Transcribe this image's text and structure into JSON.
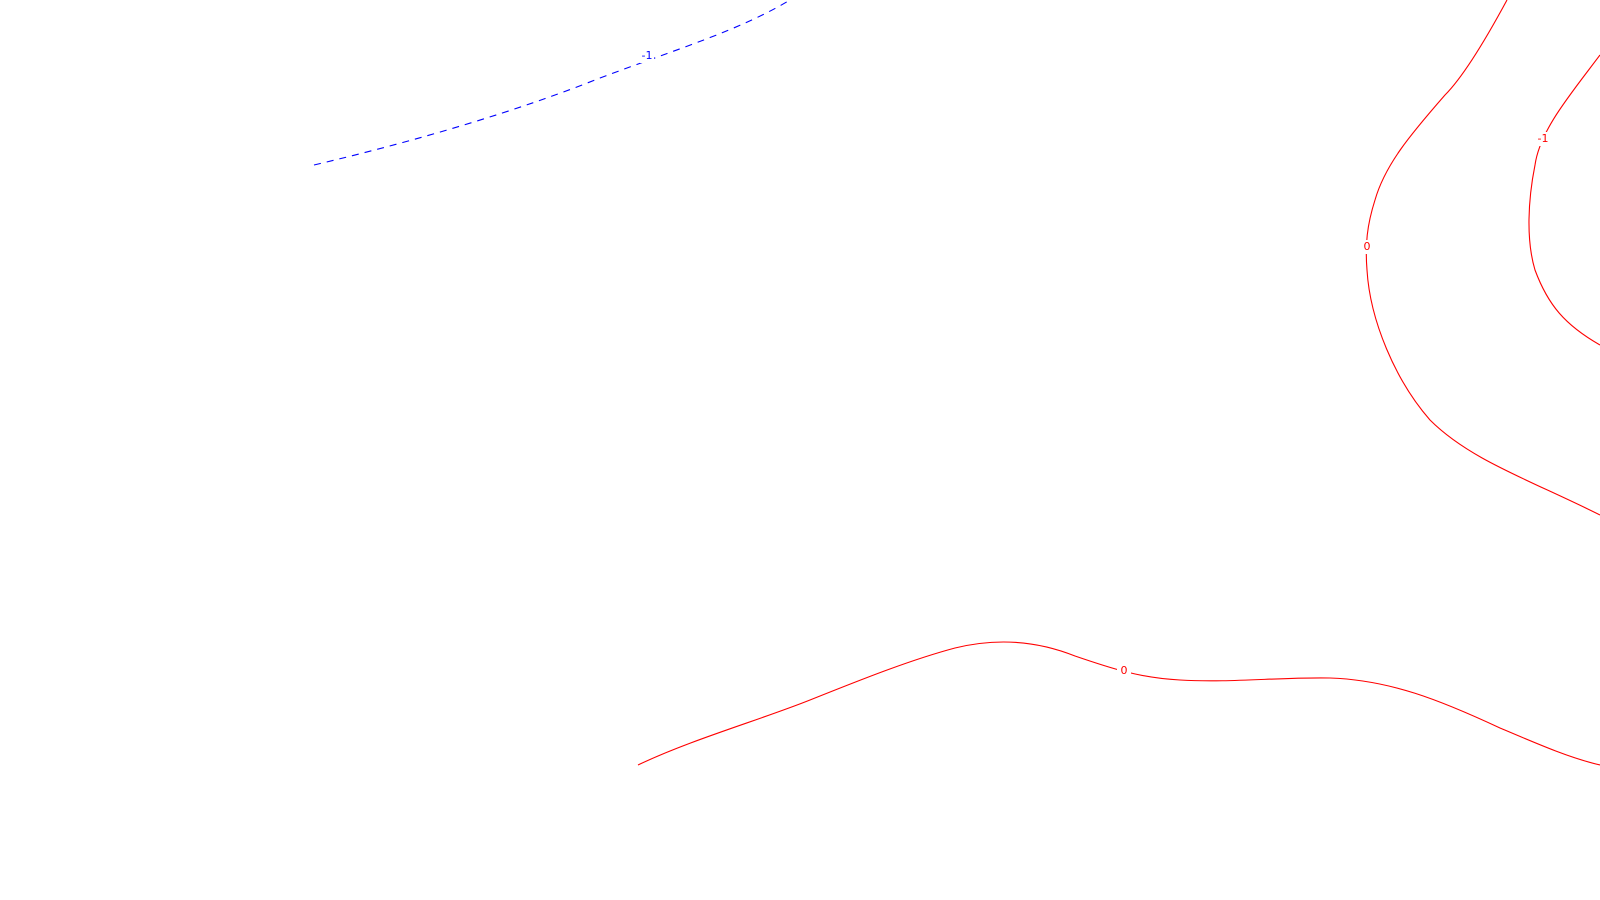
{
  "map": {
    "background": "#ffffff",
    "contours": [
      {
        "id": "blue-dashed-1",
        "color": "#0000ff",
        "style": "dashed",
        "label": "-1"
      },
      {
        "id": "red-0-right",
        "color": "#ff0000",
        "style": "solid",
        "label": "0"
      },
      {
        "id": "red-minus1-right",
        "color": "#ff0000",
        "style": "solid",
        "label": "-1"
      },
      {
        "id": "red-0-bottom",
        "color": "#ff0000",
        "style": "solid",
        "label": "0"
      }
    ]
  }
}
